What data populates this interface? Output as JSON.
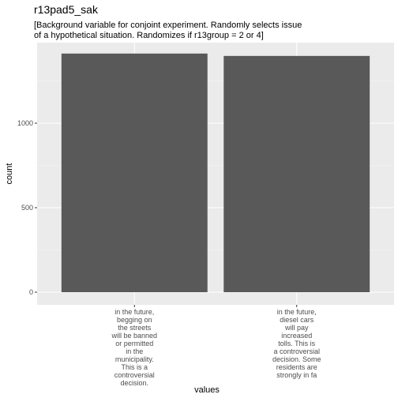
{
  "chart_data": {
    "type": "bar",
    "title": "r13pad5_sak",
    "subtitle_lines": [
      "[Background variable for conjoint experiment. Randomly selects issue",
      "of a hypothetical situation. Randomizes if r13group = 2 or 4]"
    ],
    "xlabel": "values",
    "ylabel": "count",
    "ylim": [
      0,
      1500
    ],
    "yticks": [
      0,
      500,
      1000
    ],
    "grid": true,
    "categories": [
      [
        "in the future,",
        "begging on",
        "the streets",
        "will be banned",
        "or permitted",
        "in the",
        "municipality.",
        "This is a",
        "controversial",
        "decision."
      ],
      [
        "in the future,",
        "diesel cars",
        "will pay",
        "increased",
        "tolls. This is",
        "a controversial",
        "decision. Some",
        "residents are",
        "strongly in fa"
      ]
    ],
    "values": [
      1412,
      1398
    ],
    "colors": {
      "panel": "#ebebeb",
      "grid_major": "#ffffff",
      "grid_minor": "#f5f5f5",
      "bar": "#595959",
      "tick": "#4d4d4d"
    }
  }
}
